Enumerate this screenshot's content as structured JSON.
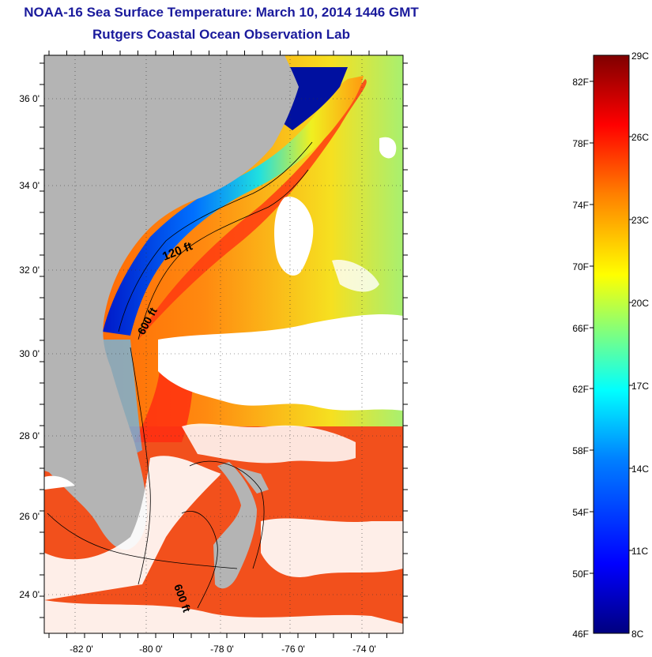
{
  "title": "NOAA-16 Sea Surface Temperature:  March 10, 2014 1446 GMT",
  "subtitle": "Rutgers Coastal Ocean Observation Lab",
  "map": {
    "lat_labels": [
      "36 0'",
      "34 0'",
      "32 0'",
      "30 0'",
      "28 0'",
      "26 0'",
      "24 0'"
    ],
    "lon_labels": [
      "-82 0'",
      "-80 0'",
      "-78 0'",
      "-76 0'",
      "-74 0'"
    ],
    "isobath_labels": [
      "120 ft",
      "600 ft",
      "600 ft"
    ],
    "colors": {
      "land": "#b4b4b4",
      "cloud": "#ffffff",
      "frame": "#000000"
    }
  },
  "colorbar": {
    "fahrenheit_labels": [
      "82F",
      "78F",
      "74F",
      "70F",
      "66F",
      "62F",
      "58F",
      "54F",
      "50F",
      "46F"
    ],
    "celsius_labels": [
      "29C",
      "26C",
      "23C",
      "20C",
      "17C",
      "14C",
      "11C",
      "8C"
    ],
    "range_f": [
      46,
      83
    ],
    "colormap": [
      "#00007f",
      "#0000ff",
      "#007fff",
      "#00ffff",
      "#7fff7f",
      "#ffff00",
      "#ff7f00",
      "#ff0000",
      "#7f0000"
    ]
  }
}
